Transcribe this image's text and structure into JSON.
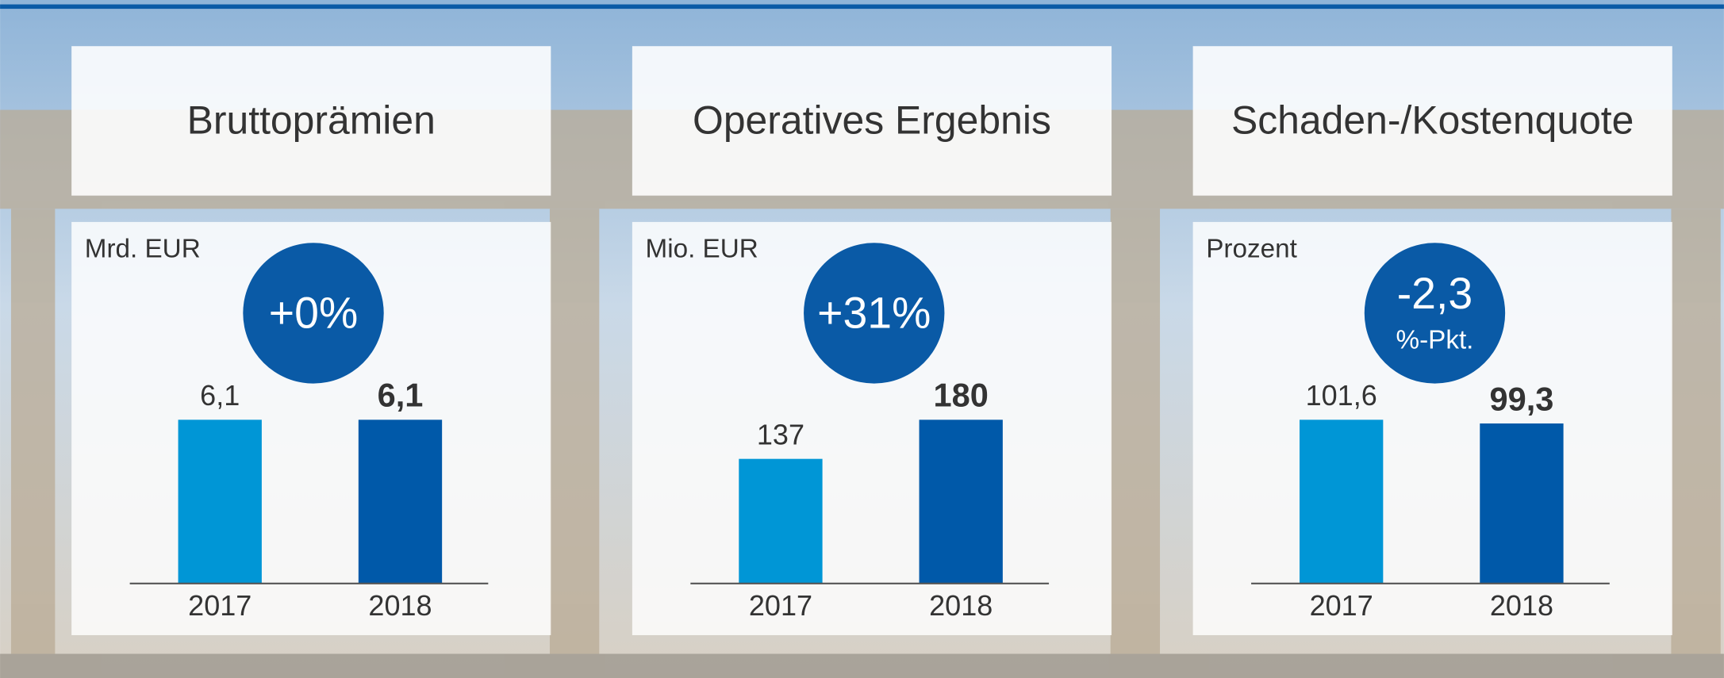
{
  "chart_data": [
    {
      "type": "bar",
      "title": "Bruttoprämien",
      "unit": "Mrd. EUR",
      "badge": [
        "+0%"
      ],
      "categories": [
        "2017",
        "2018"
      ],
      "values": [
        6.1,
        6.1
      ],
      "value_labels": [
        "6,1",
        "6,1"
      ],
      "colors": [
        "#0096d6",
        "#0059a9"
      ]
    },
    {
      "type": "bar",
      "title": "Operatives Ergebnis",
      "unit": "Mio. EUR",
      "badge": [
        "+31%"
      ],
      "categories": [
        "2017",
        "2018"
      ],
      "values": [
        137,
        180
      ],
      "value_labels": [
        "137",
        "180"
      ],
      "colors": [
        "#0096d6",
        "#0059a9"
      ]
    },
    {
      "type": "bar",
      "title": "Schaden-/Kostenquote",
      "unit": "Prozent",
      "badge": [
        "-2,3",
        "%-Pkt."
      ],
      "categories": [
        "2017",
        "2018"
      ],
      "values": [
        101.6,
        99.3
      ],
      "value_labels": [
        "101,6",
        "99,3"
      ],
      "colors": [
        "#0096d6",
        "#0059a9"
      ]
    }
  ]
}
